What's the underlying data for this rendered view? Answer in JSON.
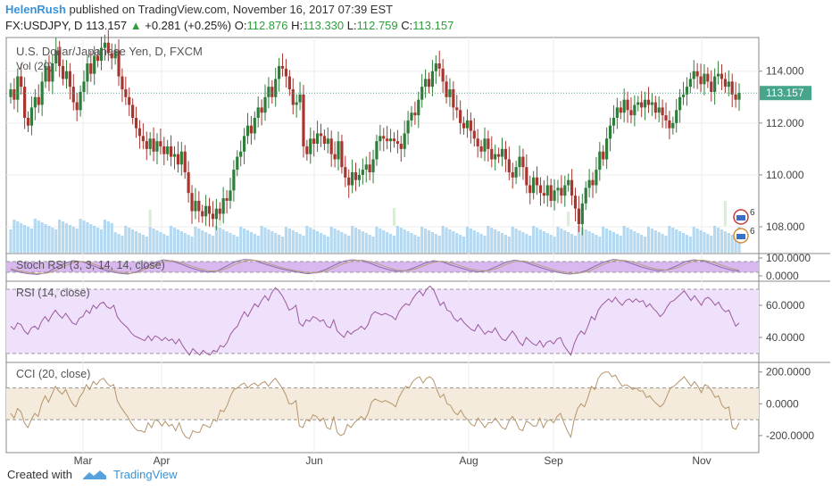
{
  "header": {
    "author": "HelenRush",
    "published_text": "published on TradingView.com, November 16, 2017 07:39 EST",
    "symbol": "FX:USDJPY, D",
    "last": "113.157",
    "change": "+0.281 (+0.25%)",
    "open_label": "O:",
    "open": "112.876",
    "high_label": "H:",
    "high": "113.330",
    "low_label": "L:",
    "low": "112.759",
    "close_label": "C:",
    "close": "113.157"
  },
  "chart_data": [
    {
      "type": "candlestick",
      "title": "U.S. Dollar/Japanese Yen, D, FXCM",
      "subtitle": "Vol (20)",
      "x_ticks": [
        "Mar",
        "Apr",
        "Jun",
        "Aug",
        "Sep",
        "Nov"
      ],
      "y_ticks": [
        "114.000",
        "112.000",
        "110.000",
        "108.000"
      ],
      "ylim": [
        107.0,
        115.3
      ],
      "last_price_label": "113.157",
      "last_price": 113.157,
      "close_series": [
        113.3,
        112.9,
        113.8,
        113.4,
        112.2,
        111.9,
        112.6,
        113.0,
        112.7,
        113.6,
        114.2,
        113.6,
        114.3,
        114.8,
        114.2,
        113.7,
        114.0,
        113.4,
        112.8,
        112.5,
        113.2,
        113.6,
        114.3,
        113.9,
        114.6,
        114.4,
        114.9,
        115.1,
        114.7,
        114.5,
        114.8,
        113.8,
        113.3,
        113.0,
        112.7,
        112.2,
        111.8,
        111.5,
        111.3,
        111.0,
        111.4,
        110.9,
        111.3,
        111.1,
        110.8,
        111.1,
        110.7,
        110.8,
        110.4,
        110.9,
        110.1,
        109.3,
        108.6,
        109.0,
        108.6,
        108.4,
        108.8,
        108.5,
        108.3,
        108.7,
        108.5,
        109.1,
        109.0,
        109.4,
        110.2,
        110.7,
        110.9,
        111.5,
        111.9,
        111.6,
        112.2,
        112.6,
        112.4,
        113.0,
        113.4,
        113.0,
        113.7,
        114.2,
        114.1,
        113.8,
        113.3,
        112.7,
        112.8,
        113.1,
        111.1,
        110.8,
        111.4,
        111.2,
        111.6,
        111.5,
        111.2,
        111.4,
        110.8,
        110.6,
        111.3,
        110.3,
        109.9,
        109.6,
        110.1,
        109.8,
        110.0,
        110.2,
        110.4,
        110.1,
        110.6,
        111.3,
        111.5,
        111.4,
        111.3,
        111.4,
        111.3,
        111.2,
        111.0,
        111.6,
        112.1,
        112.4,
        112.3,
        112.9,
        113.4,
        113.7,
        113.4,
        114.0,
        114.3,
        114.1,
        113.6,
        113.0,
        113.3,
        112.6,
        112.5,
        112.0,
        111.8,
        112.1,
        111.7,
        111.4,
        111.1,
        110.9,
        111.4,
        111.0,
        110.6,
        110.8,
        110.7,
        111.0,
        110.6,
        110.1,
        109.9,
        110.3,
        110.7,
        110.3,
        109.6,
        109.3,
        109.9,
        109.6,
        109.3,
        109.2,
        109.6,
        109.0,
        109.4,
        109.5,
        109.2,
        109.6,
        109.8,
        109.2,
        108.7,
        108.1,
        108.9,
        109.5,
        109.8,
        109.6,
        110.2,
        110.9,
        110.6,
        111.4,
        111.9,
        112.2,
        112.6,
        112.4,
        112.9,
        112.5,
        112.3,
        112.7,
        112.8,
        112.6,
        112.9,
        112.7,
        112.8,
        112.4,
        112.6,
        112.3,
        112.1,
        111.8,
        112.0,
        112.5,
        113.0,
        113.1,
        113.4,
        113.7,
        114.0,
        113.8,
        113.5,
        113.9,
        113.6,
        113.2,
        113.8,
        113.9,
        113.7,
        113.4,
        113.6,
        113.1,
        112.9,
        113.16
      ],
      "volume_note": "volume histogram (no printed values)"
    },
    {
      "type": "line",
      "title": "Stoch RSI (3, 3, 14, 14, close)",
      "y_ticks": [
        "100.0000",
        "0.0000"
      ],
      "ylim": [
        -25,
        125
      ],
      "bands": [
        20,
        80
      ],
      "k": [
        35,
        20,
        12,
        8,
        18,
        45,
        70,
        85,
        78,
        60,
        40,
        25,
        15,
        10,
        22,
        50,
        75,
        90,
        82,
        65,
        45,
        30,
        20,
        28,
        55,
        80,
        92,
        88,
        70,
        55,
        40,
        30,
        20,
        12,
        18,
        35,
        60,
        82,
        90,
        85,
        70,
        50,
        35,
        25,
        30,
        48,
        70,
        85,
        78,
        60,
        45,
        30,
        22,
        30,
        52,
        75,
        88,
        80,
        62,
        45,
        30,
        18,
        10,
        14,
        30,
        55,
        78,
        92,
        86,
        70,
        52,
        38,
        28,
        34,
        55,
        80,
        90,
        84,
        66,
        48,
        34,
        26
      ],
      "d": [
        40,
        28,
        18,
        12,
        15,
        30,
        55,
        75,
        80,
        70,
        52,
        35,
        22,
        14,
        18,
        38,
        60,
        80,
        85,
        74,
        56,
        40,
        28,
        26,
        42,
        65,
        84,
        88,
        80,
        64,
        48,
        36,
        26,
        18,
        16,
        26,
        46,
        68,
        84,
        88,
        80,
        64,
        46,
        32,
        28,
        38,
        58,
        76,
        82,
        72,
        56,
        40,
        30,
        28,
        40,
        62,
        80,
        84,
        72,
        56,
        40,
        26,
        16,
        14,
        22,
        42,
        66,
        84,
        88,
        80,
        64,
        48,
        36,
        32,
        44,
        66,
        84,
        88,
        78,
        60,
        44,
        32
      ]
    },
    {
      "type": "line",
      "title": "RSI (14, close)",
      "y_ticks": [
        "60.0000",
        "40.0000"
      ],
      "ylim": [
        25,
        75
      ],
      "bands": [
        30,
        70
      ],
      "values": [
        47,
        45,
        49,
        48,
        44,
        42,
        46,
        47,
        45,
        50,
        53,
        50,
        54,
        57,
        54,
        52,
        55,
        52,
        49,
        48,
        52,
        53,
        57,
        55,
        60,
        58,
        61,
        62,
        59,
        58,
        60,
        53,
        50,
        48,
        46,
        43,
        41,
        40,
        39,
        38,
        41,
        38,
        41,
        40,
        38,
        40,
        38,
        39,
        36,
        39,
        35,
        32,
        29,
        33,
        31,
        29,
        32,
        30,
        29,
        32,
        31,
        35,
        34,
        37,
        42,
        45,
        47,
        52,
        56,
        53,
        57,
        61,
        59,
        63,
        66,
        63,
        68,
        71,
        69,
        66,
        62,
        57,
        58,
        60,
        49,
        47,
        51,
        50,
        53,
        52,
        50,
        51,
        47,
        46,
        51,
        44,
        42,
        40,
        44,
        42,
        44,
        45,
        47,
        45,
        48,
        54,
        56,
        55,
        54,
        55,
        54,
        53,
        51,
        56,
        59,
        61,
        60,
        64,
        67,
        69,
        66,
        70,
        72,
        70,
        65,
        60,
        62,
        57,
        56,
        52,
        50,
        52,
        49,
        47,
        45,
        44,
        48,
        45,
        42,
        44,
        43,
        46,
        42,
        39,
        38,
        41,
        44,
        41,
        37,
        35,
        40,
        38,
        36,
        35,
        38,
        34,
        37,
        38,
        36,
        39,
        40,
        35,
        32,
        29,
        36,
        41,
        44,
        42,
        47,
        53,
        51,
        57,
        60,
        62,
        64,
        62,
        65,
        62,
        60,
        63,
        64,
        62,
        64,
        62,
        63,
        59,
        61,
        58,
        56,
        53,
        55,
        59,
        62,
        63,
        65,
        67,
        69,
        66,
        63,
        66,
        63,
        60,
        64,
        65,
        63,
        60,
        62,
        58,
        56,
        57,
        52,
        47,
        49
      ],
      "last": 49
    },
    {
      "type": "line",
      "title": "CCI (20, close)",
      "y_ticks": [
        "200.0000",
        "0.0000",
        "-200.0000"
      ],
      "ylim": [
        -240,
        260
      ],
      "bands": [
        -100,
        100
      ],
      "values": [
        -60,
        -90,
        -30,
        -50,
        -120,
        -150,
        -100,
        -60,
        -80,
        0,
        50,
        10,
        60,
        110,
        80,
        60,
        90,
        40,
        0,
        -20,
        40,
        70,
        120,
        90,
        140,
        120,
        150,
        160,
        130,
        110,
        120,
        20,
        -20,
        -50,
        -80,
        -120,
        -150,
        -170,
        -170,
        -180,
        -120,
        -150,
        -100,
        -110,
        -140,
        -110,
        -140,
        -130,
        -170,
        -120,
        -180,
        -210,
        -220,
        -170,
        -180,
        -180,
        -130,
        -140,
        -150,
        -100,
        -110,
        -40,
        -50,
        -10,
        50,
        90,
        100,
        120,
        130,
        100,
        120,
        130,
        110,
        130,
        140,
        110,
        140,
        160,
        130,
        100,
        60,
        0,
        0,
        20,
        -140,
        -150,
        -100,
        -110,
        -70,
        -80,
        -110,
        -90,
        -150,
        -160,
        -80,
        -180,
        -200,
        -190,
        -130,
        -150,
        -120,
        -100,
        -80,
        -100,
        -60,
        10,
        30,
        20,
        10,
        20,
        10,
        0,
        -20,
        40,
        80,
        110,
        100,
        140,
        160,
        170,
        130,
        160,
        170,
        150,
        90,
        40,
        60,
        0,
        -10,
        -50,
        -70,
        -40,
        -80,
        -100,
        -130,
        -140,
        -90,
        -120,
        -150,
        -120,
        -120,
        -90,
        -120,
        -150,
        -160,
        -110,
        -80,
        -110,
        -160,
        -170,
        -110,
        -120,
        -140,
        -140,
        -90,
        -150,
        -110,
        -100,
        -120,
        -80,
        -60,
        -120,
        -170,
        -210,
        -100,
        -30,
        0,
        -20,
        40,
        110,
        90,
        160,
        190,
        200,
        200,
        170,
        180,
        140,
        110,
        120,
        110,
        90,
        100,
        80,
        80,
        40,
        50,
        20,
        0,
        -20,
        0,
        50,
        100,
        110,
        130,
        150,
        170,
        140,
        110,
        140,
        110,
        70,
        120,
        110,
        80,
        40,
        50,
        -10,
        -30,
        -20,
        -150,
        -160,
        -120
      ],
      "last": -120
    }
  ],
  "footer": {
    "created_with": "Created with",
    "brand": "TradingView"
  },
  "colors": {
    "bull": "#2f7d3a",
    "bear": "#a8352f",
    "volume": "#8ec5e8",
    "stoch_band": "#d9b8f0",
    "rsi_line": "#9c5a9e",
    "rsi_band": "#efe0fb",
    "cci_line": "#b5956a",
    "cci_band": "#f4ebdd",
    "price_label": "#46a58a",
    "accent": "#3a92d6"
  }
}
